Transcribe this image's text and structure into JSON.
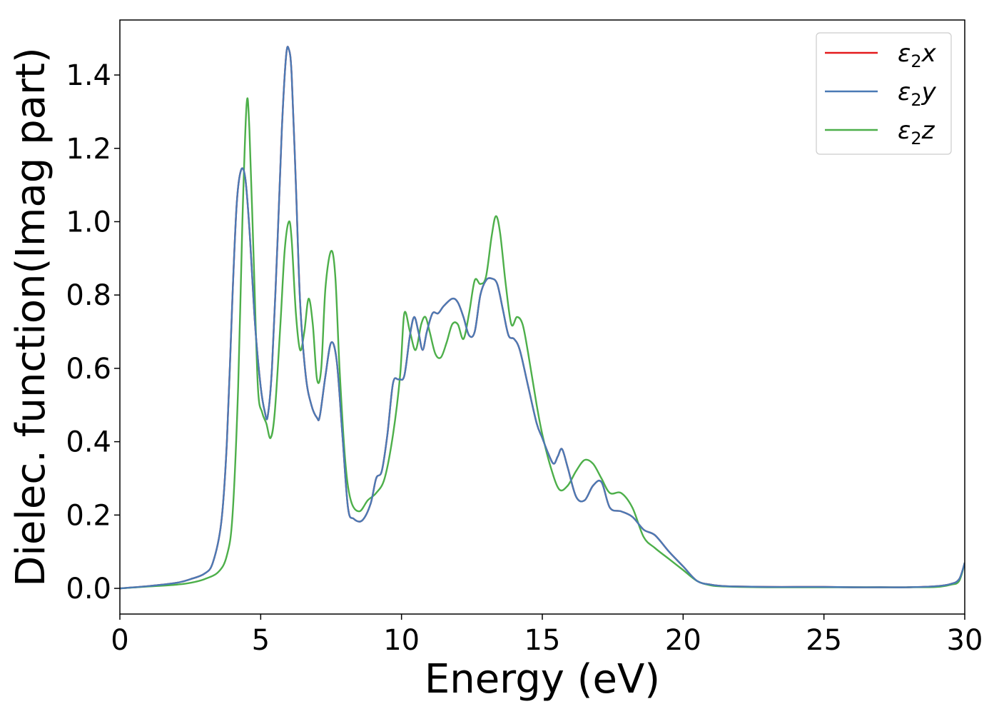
{
  "chart_data": {
    "type": "line",
    "xlabel": "Energy (eV)",
    "ylabel": "Dielec. function(Imag part)",
    "xlim": [
      0,
      30
    ],
    "ylim": [
      -0.07,
      1.55
    ],
    "xticks": [
      0,
      5,
      10,
      15,
      20,
      25,
      30
    ],
    "yticks": [
      0.0,
      0.2,
      0.4,
      0.6,
      0.8,
      1.0,
      1.2,
      1.4
    ],
    "xtick_labels": [
      "0",
      "5",
      "10",
      "15",
      "20",
      "25",
      "30"
    ],
    "ytick_labels": [
      "0.0",
      "0.2",
      "0.4",
      "0.6",
      "0.8",
      "1.0",
      "1.2",
      "1.4"
    ],
    "grid": false,
    "legend_position": "top-right",
    "series": [
      {
        "name": "ε₂x",
        "legend_base": "ε",
        "legend_sub": "2",
        "legend_var": "x",
        "color": "#e41a1c",
        "x": [
          0,
          1,
          2,
          2.5,
          3,
          3.3,
          3.6,
          3.8,
          4.0,
          4.15,
          4.3,
          4.45,
          4.6,
          4.8,
          5.0,
          5.15,
          5.25,
          5.4,
          5.6,
          5.75,
          5.9,
          6.0,
          6.1,
          6.25,
          6.4,
          6.6,
          6.8,
          7.0,
          7.1,
          7.3,
          7.5,
          7.7,
          7.9,
          8.1,
          8.3,
          8.6,
          8.9,
          9.1,
          9.3,
          9.5,
          9.7,
          9.9,
          10.1,
          10.3,
          10.45,
          10.6,
          10.75,
          10.9,
          11.1,
          11.3,
          11.5,
          11.8,
          12.0,
          12.2,
          12.4,
          12.6,
          12.8,
          13.0,
          13.2,
          13.4,
          13.6,
          13.8,
          14.0,
          14.2,
          14.5,
          14.8,
          15.0,
          15.2,
          15.4,
          15.55,
          15.7,
          15.9,
          16.2,
          16.5,
          16.8,
          17.1,
          17.4,
          17.8,
          18.2,
          18.6,
          19.0,
          19.5,
          20.0,
          20.5,
          21.0,
          21.5,
          22,
          23,
          24,
          25,
          26,
          27,
          28,
          29,
          29.5,
          29.8,
          30
        ],
        "y": [
          0.0,
          0.006,
          0.015,
          0.025,
          0.04,
          0.07,
          0.18,
          0.4,
          0.8,
          1.05,
          1.14,
          1.12,
          0.98,
          0.72,
          0.55,
          0.48,
          0.47,
          0.6,
          0.95,
          1.25,
          1.45,
          1.47,
          1.4,
          1.1,
          0.78,
          0.58,
          0.5,
          0.465,
          0.47,
          0.58,
          0.67,
          0.62,
          0.42,
          0.22,
          0.19,
          0.185,
          0.23,
          0.3,
          0.32,
          0.42,
          0.56,
          0.57,
          0.58,
          0.69,
          0.74,
          0.7,
          0.65,
          0.7,
          0.75,
          0.75,
          0.77,
          0.79,
          0.78,
          0.74,
          0.69,
          0.7,
          0.8,
          0.84,
          0.845,
          0.83,
          0.76,
          0.69,
          0.68,
          0.65,
          0.55,
          0.45,
          0.41,
          0.37,
          0.34,
          0.36,
          0.38,
          0.33,
          0.25,
          0.24,
          0.28,
          0.29,
          0.22,
          0.21,
          0.195,
          0.16,
          0.145,
          0.1,
          0.06,
          0.02,
          0.01,
          0.006,
          0.005,
          0.004,
          0.004,
          0.004,
          0.003,
          0.003,
          0.003,
          0.006,
          0.012,
          0.025,
          0.07
        ]
      },
      {
        "name": "ε₂y",
        "legend_base": "ε",
        "legend_sub": "2",
        "legend_var": "y",
        "color": "#4a7ab5",
        "x": [
          0,
          1,
          2,
          2.5,
          3,
          3.3,
          3.6,
          3.8,
          4.0,
          4.15,
          4.3,
          4.45,
          4.6,
          4.8,
          5.0,
          5.15,
          5.25,
          5.4,
          5.6,
          5.75,
          5.9,
          6.0,
          6.1,
          6.25,
          6.4,
          6.6,
          6.8,
          7.0,
          7.1,
          7.3,
          7.5,
          7.7,
          7.9,
          8.1,
          8.3,
          8.6,
          8.9,
          9.1,
          9.3,
          9.5,
          9.7,
          9.9,
          10.1,
          10.3,
          10.45,
          10.6,
          10.75,
          10.9,
          11.1,
          11.3,
          11.5,
          11.8,
          12.0,
          12.2,
          12.4,
          12.6,
          12.8,
          13.0,
          13.2,
          13.4,
          13.6,
          13.8,
          14.0,
          14.2,
          14.5,
          14.8,
          15.0,
          15.2,
          15.4,
          15.55,
          15.7,
          15.9,
          16.2,
          16.5,
          16.8,
          17.1,
          17.4,
          17.8,
          18.2,
          18.6,
          19.0,
          19.5,
          20.0,
          20.5,
          21.0,
          21.5,
          22,
          23,
          24,
          25,
          26,
          27,
          28,
          29,
          29.5,
          29.8,
          30
        ],
        "y": [
          0.0,
          0.006,
          0.015,
          0.025,
          0.04,
          0.07,
          0.18,
          0.4,
          0.8,
          1.05,
          1.14,
          1.12,
          0.98,
          0.72,
          0.55,
          0.48,
          0.47,
          0.6,
          0.95,
          1.25,
          1.45,
          1.47,
          1.4,
          1.1,
          0.78,
          0.58,
          0.5,
          0.465,
          0.47,
          0.58,
          0.67,
          0.62,
          0.42,
          0.22,
          0.19,
          0.185,
          0.23,
          0.3,
          0.32,
          0.42,
          0.56,
          0.57,
          0.58,
          0.69,
          0.74,
          0.7,
          0.65,
          0.7,
          0.75,
          0.75,
          0.77,
          0.79,
          0.78,
          0.74,
          0.69,
          0.7,
          0.8,
          0.84,
          0.845,
          0.83,
          0.76,
          0.69,
          0.68,
          0.65,
          0.55,
          0.45,
          0.41,
          0.37,
          0.34,
          0.36,
          0.38,
          0.33,
          0.25,
          0.24,
          0.28,
          0.29,
          0.22,
          0.21,
          0.195,
          0.16,
          0.145,
          0.1,
          0.06,
          0.02,
          0.01,
          0.006,
          0.005,
          0.004,
          0.004,
          0.004,
          0.003,
          0.003,
          0.003,
          0.006,
          0.012,
          0.025,
          0.07
        ]
      },
      {
        "name": "ε₂z",
        "legend_base": "ε",
        "legend_sub": "2",
        "legend_var": "z",
        "color": "#4daf4a",
        "x": [
          0,
          1,
          2,
          2.5,
          3,
          3.5,
          3.8,
          4.0,
          4.2,
          4.35,
          4.5,
          4.6,
          4.75,
          4.9,
          5.05,
          5.2,
          5.35,
          5.5,
          5.7,
          5.85,
          6.0,
          6.1,
          6.25,
          6.4,
          6.55,
          6.7,
          6.85,
          7.0,
          7.15,
          7.3,
          7.5,
          7.65,
          7.8,
          8.0,
          8.2,
          8.5,
          8.8,
          9.1,
          9.4,
          9.7,
          9.95,
          10.1,
          10.3,
          10.5,
          10.7,
          10.85,
          11.0,
          11.2,
          11.4,
          11.6,
          11.8,
          12.0,
          12.2,
          12.4,
          12.6,
          12.8,
          13.0,
          13.2,
          13.35,
          13.5,
          13.7,
          13.9,
          14.1,
          14.3,
          14.5,
          14.8,
          15.0,
          15.3,
          15.6,
          15.9,
          16.2,
          16.5,
          16.8,
          17.1,
          17.4,
          17.8,
          18.2,
          18.6,
          19.0,
          19.5,
          20.0,
          20.5,
          21.0,
          21.5,
          22,
          23,
          24,
          25,
          26,
          27,
          28,
          29,
          29.5,
          29.8,
          30
        ],
        "y": [
          0.0,
          0.005,
          0.01,
          0.015,
          0.025,
          0.045,
          0.09,
          0.2,
          0.55,
          1.0,
          1.32,
          1.25,
          0.9,
          0.55,
          0.48,
          0.45,
          0.41,
          0.48,
          0.72,
          0.92,
          1.0,
          0.95,
          0.75,
          0.65,
          0.7,
          0.79,
          0.72,
          0.57,
          0.6,
          0.82,
          0.92,
          0.85,
          0.6,
          0.35,
          0.24,
          0.21,
          0.24,
          0.26,
          0.3,
          0.42,
          0.58,
          0.75,
          0.7,
          0.65,
          0.72,
          0.74,
          0.7,
          0.64,
          0.63,
          0.67,
          0.72,
          0.72,
          0.68,
          0.75,
          0.84,
          0.83,
          0.85,
          0.96,
          1.015,
          0.97,
          0.83,
          0.72,
          0.74,
          0.72,
          0.64,
          0.5,
          0.42,
          0.33,
          0.27,
          0.28,
          0.32,
          0.35,
          0.34,
          0.3,
          0.26,
          0.26,
          0.22,
          0.14,
          0.11,
          0.08,
          0.05,
          0.02,
          0.008,
          0.005,
          0.004,
          0.003,
          0.003,
          0.003,
          0.003,
          0.003,
          0.003,
          0.004,
          0.01,
          0.02,
          0.07
        ]
      }
    ]
  }
}
